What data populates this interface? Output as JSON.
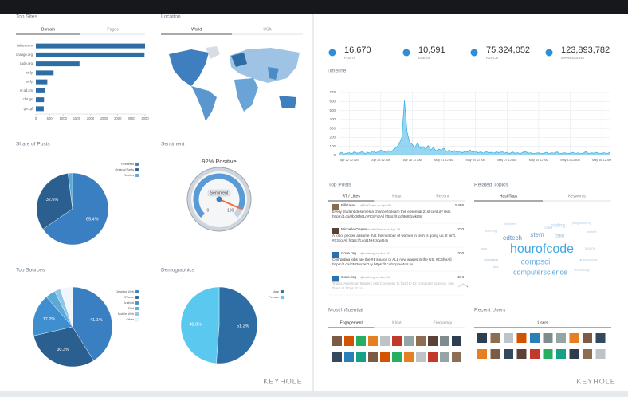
{
  "chart_data": [
    {
      "type": "bar",
      "title": "Top Sites",
      "tabs": [
        "Domain",
        "Pages"
      ],
      "orientation": "horizontal",
      "categories": [
        "twitter.com",
        "change.org",
        "code.org",
        "bit.ly",
        "ow.ly",
        "nr.gd.xm",
        "cfnt.gs",
        "goo.gl"
      ],
      "values": [
        4000,
        3980,
        1600,
        650,
        420,
        340,
        300,
        290
      ],
      "color": "#2e6da4",
      "xlim": [
        0,
        4000
      ],
      "xticks": [
        0,
        500,
        1000,
        1500,
        2000,
        2500,
        3000,
        3500,
        4000
      ],
      "grid": false
    },
    {
      "type": "pie",
      "title": "Share of Posts",
      "categories": [
        "Retweets",
        "Original Posts",
        "Replies"
      ],
      "values": [
        65.4,
        32.6,
        2.0
      ],
      "value_labels": [
        "65.4%",
        "32.6%",
        null
      ],
      "colors": [
        "#3a7fc1",
        "#2a5f8f",
        "#5aa9d6"
      ]
    },
    {
      "type": "gauge",
      "title": "Sentiment",
      "value_label": "92% Positive",
      "label": "Sentiment",
      "value": 92,
      "ylim": [
        0,
        100
      ],
      "yticks": [
        0,
        100
      ],
      "color": "#5a9bd5",
      "needle_color": "#e8743b"
    },
    {
      "type": "pie",
      "title": "Top Sources",
      "categories": [
        "Desktop Web",
        "iPhone",
        "Android",
        "iPad",
        "Mobile Web",
        "Other"
      ],
      "values": [
        41.1,
        30.3,
        17.2,
        4.0,
        2.4,
        5.0
      ],
      "value_labels": [
        "41.1%",
        "30.3%",
        "17.2%",
        null,
        null,
        null
      ],
      "colors": [
        "#3a7fc1",
        "#2a5f8f",
        "#3f8fd0",
        "#5aa9d6",
        "#8cc6e8",
        "#f2f6fa"
      ]
    },
    {
      "type": "pie",
      "title": "Demographics",
      "categories": [
        "Male",
        "Female"
      ],
      "values": [
        51.2,
        48.8
      ],
      "value_labels": [
        "51.2%",
        "48.8%"
      ],
      "colors": [
        "#2e6da4",
        "#5bc8f0"
      ]
    },
    {
      "type": "line",
      "title": "Timeline",
      "color": "#3fb5e5",
      "fill": true,
      "values": [
        20,
        35,
        15,
        25,
        30,
        20,
        40,
        25,
        30,
        45,
        20,
        35,
        25,
        50,
        30,
        40,
        60,
        45,
        35,
        55,
        40,
        70,
        90,
        130,
        200,
        610,
        260,
        150,
        120,
        90,
        140,
        80,
        100,
        70,
        110,
        60,
        90,
        50,
        70,
        60,
        80,
        45,
        60,
        40,
        55,
        35,
        50,
        30,
        45,
        40,
        60,
        35,
        50,
        30,
        40,
        25,
        45,
        30,
        35,
        25,
        40,
        30,
        50,
        25,
        35,
        20,
        40,
        25,
        30,
        20,
        35,
        45,
        25,
        30,
        20,
        25,
        30,
        20,
        25,
        35,
        20,
        30,
        25,
        40,
        20,
        25,
        30,
        20,
        25,
        35,
        20,
        30,
        20,
        25,
        45,
        20,
        30,
        25,
        35,
        20,
        25,
        30,
        20,
        35
      ],
      "xlim": [
        0,
        103
      ],
      "xticks": [
        {
          "value": 4,
          "label": "Apr 22 12 AM"
        },
        {
          "value": 16,
          "label": "Apr 25 12 AM"
        },
        {
          "value": 28,
          "label": "Apr 28 12 AM"
        },
        {
          "value": 40,
          "label": "May 01 12 AM"
        },
        {
          "value": 52,
          "label": "May 04 12 AM"
        },
        {
          "value": 64,
          "label": "May 07 12 AM"
        },
        {
          "value": 76,
          "label": "May 10 12 AM"
        },
        {
          "value": 88,
          "label": "May 13 12 AM"
        },
        {
          "value": 100,
          "label": "May 16 12 AM"
        }
      ],
      "ylim": [
        0,
        700
      ],
      "yticks": [
        0,
        100,
        200,
        300,
        400,
        500,
        600,
        700
      ],
      "grid": true
    }
  ],
  "location": {
    "title": "Location",
    "tabs": [
      "World",
      "USA"
    ]
  },
  "stats": [
    {
      "value": "16,670",
      "label": "POSTS"
    },
    {
      "value": "10,591",
      "label": "USERS"
    },
    {
      "value": "75,324,052",
      "label": "REACH"
    },
    {
      "value": "123,893,782",
      "label": "IMPRESSIONS"
    }
  ],
  "top_posts": {
    "title": "Top Posts",
    "tabs": [
      "RT / Likes",
      "Klout",
      "Recent"
    ],
    "posts": [
      {
        "name": "BillGates",
        "handle": "@BillGates on Apr 26",
        "text": "Every student deserves a chance to learn this essential 21st century skill. https://t.co/0bQ6h6Lr #CSForAll https://t.co/868f1wk8tn",
        "count": "2,486"
      },
      {
        "name": "Michelle Obama",
        "handle": "@MichelleObama on Apr 26",
        "text": "A lot of people assume that the number of women in tech is going up. It isn't. #CSforAll https://t.co/1NHxrcwO4x",
        "count": "730"
      },
      {
        "name": "Code.org",
        "handle": "@codeorg on Apr 26",
        "text": "Computing jobs are the #1 source of ALL new wages in the US. #CSforAll https://t.co/GM2ux3eTUy https://t.co/ncpnw4mLyx",
        "count": "330"
      },
      {
        "name": "Code.org",
        "handle": "@codeorg on Apr 26",
        "text": "Today, American leaders ask Congress to fund K-12 computer science, join them at https://t.co/...",
        "count": "274"
      }
    ]
  },
  "related_topics": {
    "title": "Related Topics",
    "tabs": [
      "HashTags",
      "Keywords"
    ],
    "words": [
      "hourofcode",
      "computerscience",
      "compsci",
      "edtech",
      "stem",
      "coding",
      "csk8",
      "csed",
      "code",
      "steam",
      "education",
      "girlswhocode",
      "kids",
      "learning",
      "csforall",
      "technology",
      "programming",
      "teachers"
    ]
  },
  "most_influential": {
    "title": "Most Influential",
    "tabs": [
      "Engagement",
      "Klout",
      "Frequency"
    ]
  },
  "recent_users": {
    "title": "Recent Users",
    "tabs": [
      "Users"
    ]
  },
  "brand": "KEYHOLE"
}
